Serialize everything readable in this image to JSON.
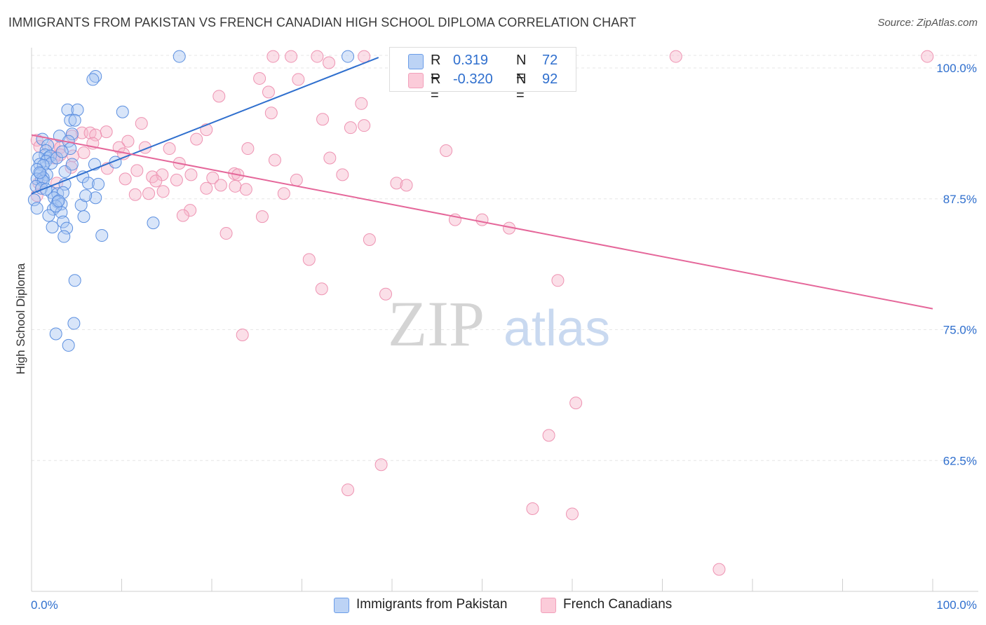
{
  "title": "IMMIGRANTS FROM PAKISTAN VS FRENCH CANADIAN HIGH SCHOOL DIPLOMA CORRELATION CHART",
  "source": "Source: ZipAtlas.com",
  "watermark": {
    "zip": "ZIP",
    "atlas": "atlas"
  },
  "legend": {
    "r_label": "R =",
    "n_label": "N =",
    "series": [
      {
        "r": "0.319",
        "n": "72"
      },
      {
        "r": "-0.320",
        "n": "92"
      }
    ]
  },
  "chart_data": {
    "type": "scatter",
    "title": "IMMIGRANTS FROM PAKISTAN VS FRENCH CANADIAN HIGH SCHOOL DIPLOMA CORRELATION CHART",
    "xlabel": "",
    "ylabel": "High School Diploma",
    "xlim": [
      0,
      100
    ],
    "ylim": [
      50,
      100
    ],
    "x_tick_labels": [
      "0.0%",
      "100.0%"
    ],
    "y_ticks": [
      62.5,
      75.0,
      87.5,
      100.0
    ],
    "y_tick_labels": [
      "62.5%",
      "75.0%",
      "87.5%",
      "100.0%"
    ],
    "grid": true,
    "legend_position": "top-center",
    "colors": {
      "pakistan": "#6b9de8",
      "pakistan_line": "#2f6fce",
      "french": "#f2a0bb",
      "french_line": "#e5679a",
      "tick_text": "#2f6fce"
    },
    "series": [
      {
        "name": "Immigrants from Pakistan",
        "trend": {
          "x": [
            0,
            38.5
          ],
          "y": [
            88.0,
            101.0
          ]
        },
        "points": [
          [
            16.4,
            101.1
          ],
          [
            35.1,
            101.1
          ],
          [
            7.1,
            99.2
          ],
          [
            6.8,
            98.9
          ],
          [
            4.0,
            96.0
          ],
          [
            5.1,
            96.0
          ],
          [
            10.1,
            95.8
          ],
          [
            4.3,
            95.0
          ],
          [
            4.8,
            95.0
          ],
          [
            4.5,
            93.7
          ],
          [
            3.1,
            93.5
          ],
          [
            1.2,
            93.2
          ],
          [
            4.1,
            93.0
          ],
          [
            1.8,
            92.6
          ],
          [
            4.3,
            92.3
          ],
          [
            1.6,
            92.1
          ],
          [
            1.5,
            91.7
          ],
          [
            1.8,
            91.4
          ],
          [
            2.1,
            91.6
          ],
          [
            0.8,
            91.4
          ],
          [
            1.6,
            91.1
          ],
          [
            0.9,
            90.8
          ],
          [
            2.2,
            90.9
          ],
          [
            1.3,
            90.7
          ],
          [
            7.0,
            90.8
          ],
          [
            9.3,
            91.0
          ],
          [
            3.7,
            90.1
          ],
          [
            0.6,
            90.3
          ],
          [
            1.0,
            89.9
          ],
          [
            1.7,
            89.8
          ],
          [
            5.7,
            89.6
          ],
          [
            1.1,
            89.4
          ],
          [
            1.3,
            89.5
          ],
          [
            0.6,
            89.4
          ],
          [
            1.3,
            89.2
          ],
          [
            3.7,
            88.9
          ],
          [
            6.3,
            89.0
          ],
          [
            7.4,
            88.9
          ],
          [
            0.5,
            88.7
          ],
          [
            1.1,
            88.5
          ],
          [
            2.2,
            88.1
          ],
          [
            2.9,
            88.0
          ],
          [
            3.5,
            88.1
          ],
          [
            7.1,
            87.6
          ],
          [
            0.3,
            87.4
          ],
          [
            2.5,
            87.6
          ],
          [
            2.9,
            87.2
          ],
          [
            3.3,
            87.0
          ],
          [
            5.5,
            86.9
          ],
          [
            0.6,
            86.6
          ],
          [
            2.4,
            86.5
          ],
          [
            3.3,
            86.2
          ],
          [
            1.9,
            85.9
          ],
          [
            5.8,
            85.8
          ],
          [
            3.5,
            85.3
          ],
          [
            13.5,
            85.2
          ],
          [
            2.3,
            84.8
          ],
          [
            3.9,
            84.7
          ],
          [
            3.6,
            83.9
          ],
          [
            7.8,
            84.0
          ],
          [
            4.8,
            79.7
          ],
          [
            4.7,
            75.6
          ],
          [
            2.7,
            74.6
          ],
          [
            4.1,
            73.5
          ],
          [
            2.7,
            86.8
          ],
          [
            3.0,
            87.3
          ],
          [
            0.9,
            90.0
          ],
          [
            6.0,
            87.8
          ],
          [
            2.8,
            91.4
          ],
          [
            3.4,
            92.0
          ],
          [
            1.6,
            88.4
          ],
          [
            4.5,
            90.8
          ]
        ]
      },
      {
        "name": "French Canadians",
        "trend": {
          "x": [
            0,
            100
          ],
          "y": [
            93.6,
            77.0
          ]
        },
        "points": [
          [
            26.8,
            101.1
          ],
          [
            28.8,
            101.1
          ],
          [
            31.7,
            101.1
          ],
          [
            36.9,
            101.1
          ],
          [
            44.0,
            101.1
          ],
          [
            47.8,
            101.1
          ],
          [
            71.5,
            101.1
          ],
          [
            99.4,
            101.1
          ],
          [
            33.0,
            100.5
          ],
          [
            25.3,
            99.0
          ],
          [
            29.6,
            98.9
          ],
          [
            26.3,
            97.7
          ],
          [
            20.8,
            97.3
          ],
          [
            36.6,
            96.6
          ],
          [
            26.6,
            95.7
          ],
          [
            32.3,
            95.1
          ],
          [
            12.2,
            94.7
          ],
          [
            35.4,
            94.3
          ],
          [
            36.9,
            94.5
          ],
          [
            19.4,
            94.1
          ],
          [
            8.3,
            93.9
          ],
          [
            5.6,
            93.8
          ],
          [
            6.5,
            93.8
          ],
          [
            7.1,
            93.6
          ],
          [
            4.5,
            93.5
          ],
          [
            18.3,
            93.2
          ],
          [
            10.7,
            93.0
          ],
          [
            0.6,
            93.1
          ],
          [
            6.8,
            92.8
          ],
          [
            2.5,
            92.6
          ],
          [
            3.2,
            92.4
          ],
          [
            9.7,
            92.4
          ],
          [
            12.6,
            92.4
          ],
          [
            46.0,
            92.1
          ],
          [
            24.0,
            92.3
          ],
          [
            15.3,
            92.3
          ],
          [
            10.2,
            91.8
          ],
          [
            3.2,
            91.7
          ],
          [
            4.6,
            91.6
          ],
          [
            2.5,
            91.4
          ],
          [
            27.0,
            91.2
          ],
          [
            33.1,
            91.4
          ],
          [
            16.4,
            90.9
          ],
          [
            4.4,
            90.5
          ],
          [
            8.4,
            90.4
          ],
          [
            11.7,
            90.2
          ],
          [
            13.4,
            89.6
          ],
          [
            14.5,
            89.8
          ],
          [
            17.7,
            89.8
          ],
          [
            22.5,
            89.9
          ],
          [
            22.9,
            89.8
          ],
          [
            34.5,
            89.8
          ],
          [
            10.4,
            89.4
          ],
          [
            13.8,
            89.2
          ],
          [
            16.1,
            89.3
          ],
          [
            20.1,
            89.5
          ],
          [
            0.8,
            89.0
          ],
          [
            2.8,
            89.0
          ],
          [
            29.4,
            89.3
          ],
          [
            40.5,
            89.0
          ],
          [
            41.6,
            88.8
          ],
          [
            21.0,
            88.8
          ],
          [
            19.4,
            88.5
          ],
          [
            22.6,
            88.7
          ],
          [
            14.6,
            88.2
          ],
          [
            13.0,
            88.0
          ],
          [
            11.5,
            87.9
          ],
          [
            23.8,
            88.4
          ],
          [
            28.0,
            88.0
          ],
          [
            0.6,
            87.8
          ],
          [
            17.6,
            86.4
          ],
          [
            16.8,
            85.9
          ],
          [
            25.6,
            85.8
          ],
          [
            47.0,
            85.5
          ],
          [
            50.0,
            85.5
          ],
          [
            53.0,
            84.7
          ],
          [
            21.6,
            84.2
          ],
          [
            37.5,
            83.6
          ],
          [
            30.8,
            81.7
          ],
          [
            58.4,
            79.7
          ],
          [
            32.2,
            78.9
          ],
          [
            39.3,
            78.4
          ],
          [
            23.4,
            74.5
          ],
          [
            60.4,
            68.0
          ],
          [
            57.4,
            64.9
          ],
          [
            38.8,
            62.1
          ],
          [
            35.1,
            59.7
          ],
          [
            55.6,
            57.9
          ],
          [
            60.0,
            57.4
          ],
          [
            76.3,
            52.1
          ],
          [
            0.9,
            92.5
          ],
          [
            5.8,
            91.9
          ]
        ]
      }
    ]
  },
  "bottom_legend": [
    {
      "label": "Immigrants from Pakistan"
    },
    {
      "label": "French Canadians"
    }
  ]
}
